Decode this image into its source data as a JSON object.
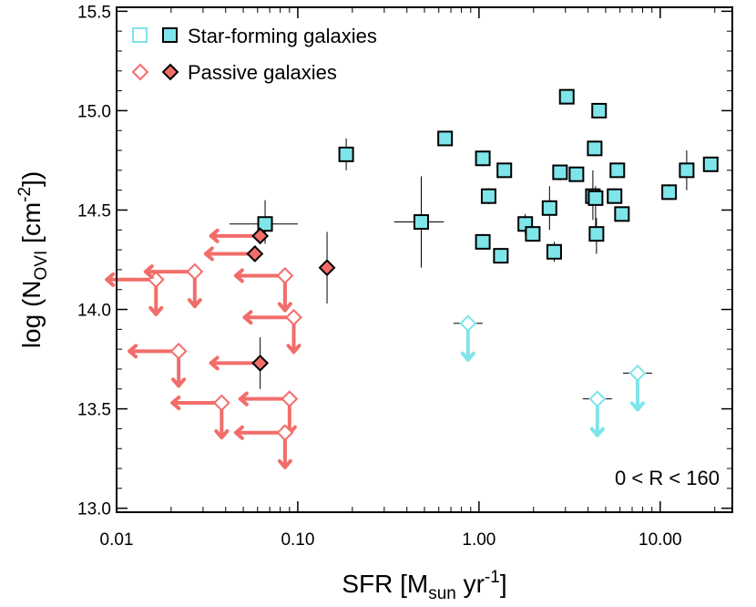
{
  "chart_data": {
    "type": "scatter",
    "xlabel": {
      "base": "SFR [M",
      "sub": "sun",
      "mid": " yr",
      "sup": "-1",
      "end": "]"
    },
    "ylabel": {
      "base": "log (N",
      "sub": "OVI",
      "mid": " [cm",
      "sup": "-2",
      "end": "])"
    },
    "xscale": "log",
    "xlim": [
      0.01,
      25
    ],
    "ylim": [
      12.98,
      15.52
    ],
    "x_ticks": [
      {
        "v": 0.01,
        "label": "0.01"
      },
      {
        "v": 0.1,
        "label": "0.10"
      },
      {
        "v": 1,
        "label": "1.00"
      },
      {
        "v": 10,
        "label": "10.00"
      }
    ],
    "y_ticks": [
      {
        "v": 13.0,
        "label": "13.0"
      },
      {
        "v": 13.5,
        "label": "13.5"
      },
      {
        "v": 14.0,
        "label": "14.0"
      },
      {
        "v": 14.5,
        "label": "14.5"
      },
      {
        "v": 15.0,
        "label": "15.0"
      },
      {
        "v": 15.5,
        "label": "15.5"
      }
    ],
    "grid": false,
    "legend_position": "top-left",
    "annotation": "0 < R <  160",
    "colors": {
      "sf_fill": "#7ee5ea",
      "sf_open": "#7ee5ea",
      "passive_fill": "#f26d6a",
      "passive_open": "#f26d6a",
      "edge": "#000000"
    },
    "series": [
      {
        "name": "Star-forming galaxies",
        "marker": "square",
        "detections": [
          {
            "x": 0.066,
            "y": 14.43,
            "xlo": 0.042,
            "xhi": 0.1,
            "ylo": 14.33,
            "yhi": 14.55
          },
          {
            "x": 0.185,
            "y": 14.78,
            "xlo": 0.185,
            "xhi": 0.185,
            "ylo": 14.7,
            "yhi": 14.86
          },
          {
            "x": 0.48,
            "y": 14.44,
            "xlo": 0.34,
            "xhi": 0.64,
            "ylo": 14.21,
            "yhi": 14.67
          },
          {
            "x": 0.65,
            "y": 14.86,
            "xlo": 0.62,
            "xhi": 0.7,
            "ylo": 14.84,
            "yhi": 14.88
          },
          {
            "x": 1.05,
            "y": 14.76,
            "xlo": 1.05,
            "xhi": 1.05,
            "ylo": 14.72,
            "yhi": 14.8
          },
          {
            "x": 1.05,
            "y": 14.34,
            "xlo": 1.02,
            "xhi": 1.08,
            "ylo": 14.3,
            "yhi": 14.38
          },
          {
            "x": 1.13,
            "y": 14.57,
            "xlo": 1.13,
            "xhi": 1.13,
            "ylo": 14.53,
            "yhi": 14.61
          },
          {
            "x": 1.32,
            "y": 14.27,
            "xlo": 1.32,
            "xhi": 1.32,
            "ylo": 14.23,
            "yhi": 14.31
          },
          {
            "x": 1.38,
            "y": 14.7,
            "xlo": 1.38,
            "xhi": 1.38,
            "ylo": 14.68,
            "yhi": 14.72
          },
          {
            "x": 1.8,
            "y": 14.43,
            "xlo": 1.78,
            "xhi": 1.85,
            "ylo": 14.38,
            "yhi": 14.48
          },
          {
            "x": 1.98,
            "y": 14.38,
            "xlo": 1.98,
            "xhi": 1.98,
            "ylo": 14.35,
            "yhi": 14.41
          },
          {
            "x": 2.45,
            "y": 14.51,
            "xlo": 2.45,
            "xhi": 2.45,
            "ylo": 14.4,
            "yhi": 14.62
          },
          {
            "x": 2.6,
            "y": 14.29,
            "xlo": 2.6,
            "xhi": 2.6,
            "ylo": 14.24,
            "yhi": 14.34
          },
          {
            "x": 2.8,
            "y": 14.69,
            "xlo": 2.65,
            "xhi": 3.0,
            "ylo": 14.65,
            "yhi": 14.72
          },
          {
            "x": 3.05,
            "y": 15.07,
            "xlo": 3.05,
            "xhi": 3.05,
            "ylo": 15.05,
            "yhi": 15.09
          },
          {
            "x": 3.45,
            "y": 14.68,
            "xlo": 3.45,
            "xhi": 3.45,
            "ylo": 14.66,
            "yhi": 14.7
          },
          {
            "x": 4.25,
            "y": 14.57,
            "xlo": 4.0,
            "xhi": 4.6,
            "ylo": 14.45,
            "yhi": 14.7
          },
          {
            "x": 4.35,
            "y": 14.81,
            "xlo": 4.1,
            "xhi": 4.6,
            "ylo": 14.77,
            "yhi": 14.85
          },
          {
            "x": 4.4,
            "y": 14.56,
            "xlo": 4.4,
            "xhi": 4.4,
            "ylo": 14.4,
            "yhi": 14.62
          },
          {
            "x": 4.45,
            "y": 14.38,
            "xlo": 4.45,
            "xhi": 4.45,
            "ylo": 14.28,
            "yhi": 14.46
          },
          {
            "x": 4.6,
            "y": 15.0,
            "xlo": 4.6,
            "xhi": 4.6,
            "ylo": 14.98,
            "yhi": 15.02
          },
          {
            "x": 5.6,
            "y": 14.57,
            "xlo": 5.4,
            "xhi": 5.8,
            "ylo": 14.55,
            "yhi": 14.59
          },
          {
            "x": 5.8,
            "y": 14.7,
            "xlo": 5.8,
            "xhi": 5.8,
            "ylo": 14.68,
            "yhi": 14.72
          },
          {
            "x": 6.15,
            "y": 14.48,
            "xlo": 6.15,
            "xhi": 6.15,
            "ylo": 14.46,
            "yhi": 14.5
          },
          {
            "x": 11.2,
            "y": 14.59,
            "xlo": 11.2,
            "xhi": 11.2,
            "ylo": 14.55,
            "yhi": 14.63
          },
          {
            "x": 14.0,
            "y": 14.7,
            "xlo": 14.0,
            "xhi": 14.0,
            "ylo": 14.6,
            "yhi": 14.8
          },
          {
            "x": 19.0,
            "y": 14.73,
            "xlo": 19.0,
            "xhi": 19.0,
            "ylo": 14.71,
            "yhi": 14.75
          }
        ],
        "upper_limits": [
          {
            "x": 0.87,
            "y": 13.93,
            "left": false
          },
          {
            "x": 4.5,
            "y": 13.55,
            "left": false
          },
          {
            "x": 7.5,
            "y": 13.68,
            "left": false
          }
        ]
      },
      {
        "name": "Passive galaxies",
        "marker": "diamond",
        "detections": [
          {
            "x": 0.062,
            "y": 14.37,
            "xlo": 0.062,
            "xhi": 0.062,
            "ylo": 14.35,
            "yhi": 14.39
          },
          {
            "x": 0.058,
            "y": 14.28,
            "xlo": 0.058,
            "xhi": 0.058,
            "ylo": 14.26,
            "yhi": 14.3
          },
          {
            "x": 0.145,
            "y": 14.21,
            "xlo": 0.145,
            "xhi": 0.145,
            "ylo": 14.03,
            "yhi": 14.39
          },
          {
            "x": 0.062,
            "y": 13.73,
            "xlo": 0.062,
            "xhi": 0.062,
            "ylo": 13.6,
            "yhi": 13.86
          }
        ],
        "upper_limits": [
          {
            "x": 0.0165,
            "y": 14.15,
            "left": true
          },
          {
            "x": 0.027,
            "y": 14.19,
            "left": true
          },
          {
            "x": 0.085,
            "y": 14.17,
            "left": true
          },
          {
            "x": 0.095,
            "y": 13.96,
            "left": true
          },
          {
            "x": 0.022,
            "y": 13.79,
            "left": true
          },
          {
            "x": 0.09,
            "y": 13.55,
            "left": true
          },
          {
            "x": 0.038,
            "y": 13.53,
            "left": true
          },
          {
            "x": 0.085,
            "y": 13.38,
            "left": true
          }
        ],
        "left_only_limits": [
          {
            "x": 0.062,
            "y": 14.37
          },
          {
            "x": 0.058,
            "y": 14.28
          },
          {
            "x": 0.062,
            "y": 13.73
          }
        ]
      }
    ]
  }
}
